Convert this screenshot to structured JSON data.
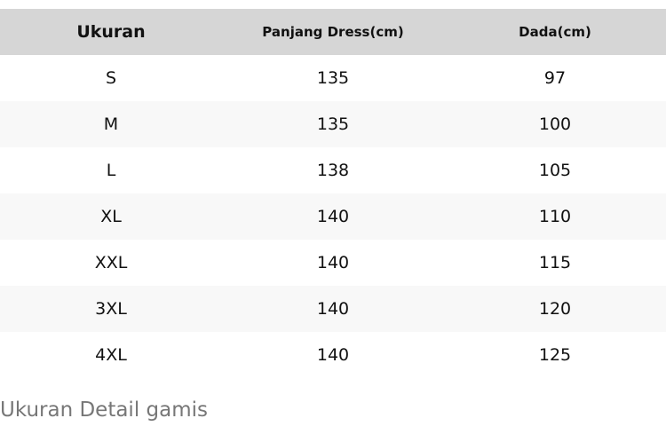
{
  "table": {
    "headers": [
      "Ukuran",
      "Panjang Dress(cm)",
      "Dada(cm)"
    ],
    "rows": [
      [
        "S",
        "135",
        "97"
      ],
      [
        "M",
        "135",
        "100"
      ],
      [
        "L",
        "138",
        "105"
      ],
      [
        "XL",
        "140",
        "110"
      ],
      [
        "XXL",
        "140",
        "115"
      ],
      [
        "3XL",
        "140",
        "120"
      ],
      [
        "4XL",
        "140",
        "125"
      ]
    ]
  },
  "caption": "Ukuran Detail gamis",
  "colors": {
    "header_background": "#d6d6d6",
    "row_alt_background": "#f8f8f8",
    "caption_text": "#777777"
  }
}
